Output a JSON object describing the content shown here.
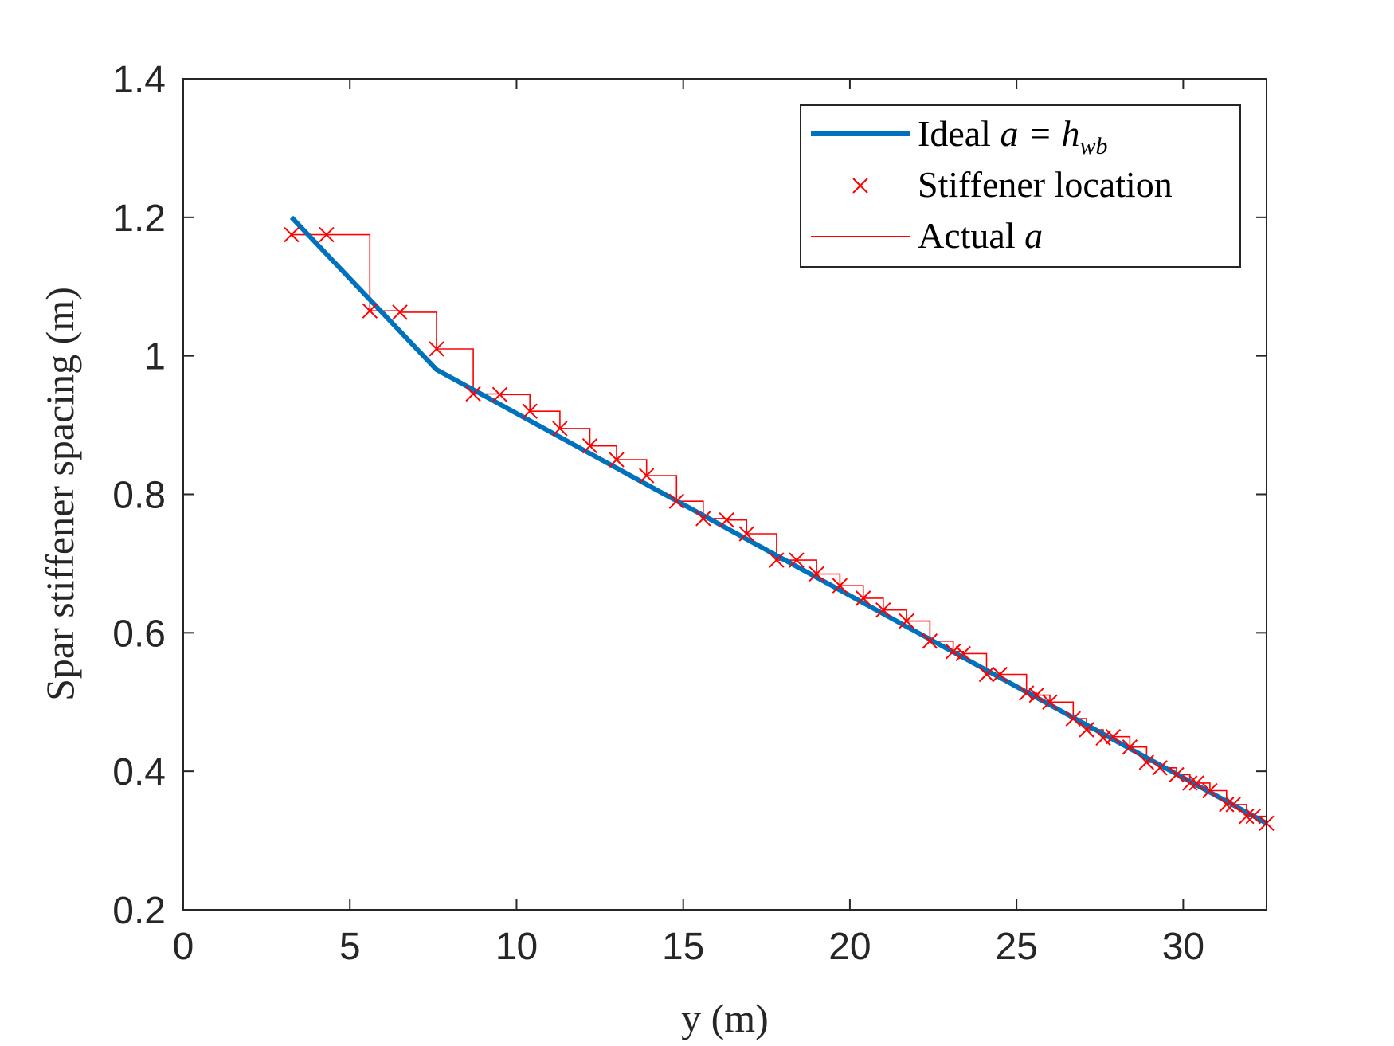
{
  "chart_data": {
    "type": "line",
    "title": "",
    "xlabel": "y (m)",
    "ylabel": "Spar stiffener spacing (m)",
    "xlim": [
      0,
      32.5
    ],
    "ylim": [
      0.2,
      1.4
    ],
    "xticks": [
      "0",
      "5",
      "10",
      "15",
      "20",
      "25",
      "30"
    ],
    "yticks": [
      "0.2",
      "0.4",
      "0.6",
      "0.8",
      "1",
      "1.2",
      "1.4"
    ],
    "grid": false,
    "legend_position": "top-right",
    "legend": {
      "ideal": {
        "prefix": "Ideal ",
        "math": "a = h",
        "subscript": "wb"
      },
      "stiffener": {
        "text": "Stiffener location"
      },
      "actual": {
        "prefix": "Actual ",
        "math": "a"
      }
    },
    "colors": {
      "ideal": "#0072BD",
      "stiffener": "#FF0000",
      "actual": "#FF0000"
    },
    "series": [
      {
        "name": "Ideal a = h_wb",
        "style": "thick-line",
        "x": [
          3.25,
          7.6,
          32.5
        ],
        "y": [
          1.2,
          0.98,
          0.325
        ]
      },
      {
        "name": "Stiffener location",
        "style": "x-marker",
        "x": [
          3.25,
          4.3,
          5.6,
          6.5,
          7.6,
          8.7,
          9.5,
          10.4,
          11.3,
          12.2,
          13.0,
          13.9,
          14.8,
          15.6,
          16.3,
          16.9,
          17.8,
          18.4,
          19.0,
          19.7,
          20.4,
          21.0,
          21.7,
          22.4,
          23.1,
          23.4,
          24.1,
          24.5,
          25.3,
          25.6,
          26.0,
          26.7,
          27.1,
          27.6,
          27.9,
          28.4,
          28.9,
          29.3,
          29.8,
          30.2,
          30.4,
          30.8,
          31.3,
          31.5,
          31.9,
          32.1,
          32.5
        ],
        "y": [
          1.175,
          1.175,
          1.065,
          1.063,
          1.01,
          0.945,
          0.944,
          0.92,
          0.895,
          0.87,
          0.85,
          0.827,
          0.79,
          0.765,
          0.763,
          0.743,
          0.705,
          0.705,
          0.685,
          0.668,
          0.65,
          0.633,
          0.617,
          0.588,
          0.573,
          0.57,
          0.54,
          0.54,
          0.513,
          0.51,
          0.5,
          0.476,
          0.46,
          0.448,
          0.45,
          0.435,
          0.413,
          0.405,
          0.395,
          0.383,
          0.383,
          0.372,
          0.352,
          0.352,
          0.335,
          0.335,
          0.325
        ]
      },
      {
        "name": "Actual a",
        "style": "thin-step",
        "description_of_shape": "step"
      }
    ]
  }
}
